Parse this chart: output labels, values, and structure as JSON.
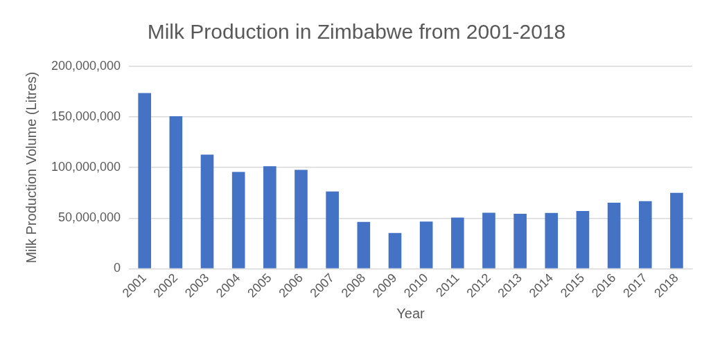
{
  "chart_data": {
    "type": "bar",
    "title": "Milk Production in Zimbabwe from 2001-2018",
    "xlabel": "Year",
    "ylabel": "Milk Production Volume (Litres)",
    "categories": [
      "2001",
      "2002",
      "2003",
      "2004",
      "2005",
      "2006",
      "2007",
      "2008",
      "2009",
      "2010",
      "2011",
      "2012",
      "2013",
      "2014",
      "2015",
      "2016",
      "2017",
      "2018"
    ],
    "values": [
      173600000,
      150800000,
      112800000,
      95700000,
      101400000,
      97800000,
      76400000,
      46200000,
      35300000,
      46700000,
      50500000,
      55400000,
      54300000,
      55200000,
      57100000,
      65200000,
      66800000,
      75000000
    ],
    "color": "#4472c4",
    "ylim": [
      0,
      200000000
    ],
    "yticks": [
      0,
      {
        "value": 50000000,
        "label": "50,000,000"
      },
      {
        "value": 100000000,
        "label": "100,000,000"
      },
      {
        "value": 150000000,
        "label": "150,000,000"
      },
      {
        "value": 200000000,
        "label": "200,000,000"
      }
    ],
    "grid": "y",
    "legend": false
  }
}
